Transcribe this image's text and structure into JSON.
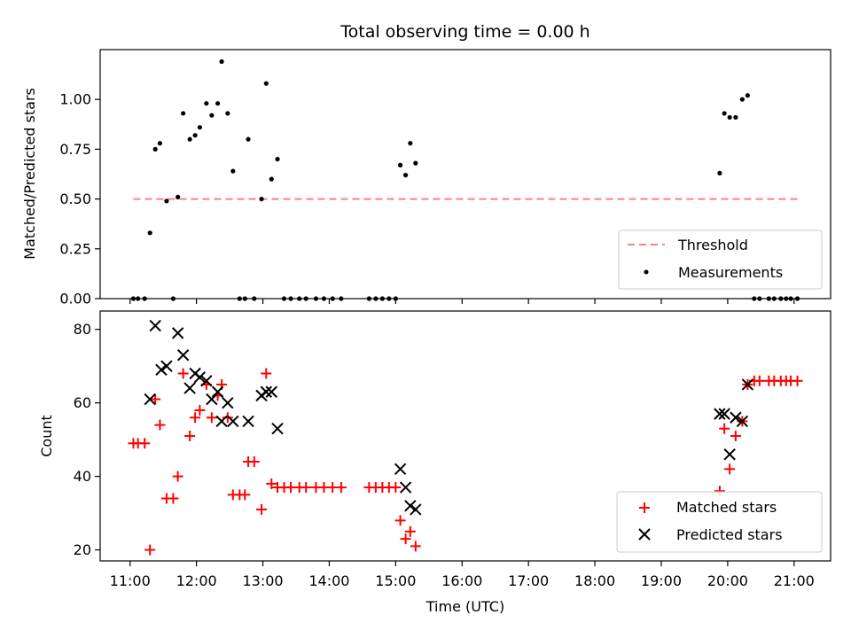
{
  "chart_data": {
    "title": "Total observing time = 0.00 h",
    "x_axis": {
      "label": "Time (UTC)",
      "ticks": [
        "11:00",
        "12:00",
        "13:00",
        "14:00",
        "15:00",
        "16:00",
        "17:00",
        "18:00",
        "19:00",
        "20:00",
        "21:00"
      ],
      "range_hours": [
        10.55,
        21.55
      ]
    },
    "panels": [
      {
        "type": "scatter",
        "ylabel": "Matched/Predicted stars",
        "ylim": [
          0,
          1.25
        ],
        "yticks": [
          "0.00",
          "0.25",
          "0.50",
          "0.75",
          "1.00"
        ],
        "threshold": {
          "name": "Threshold",
          "value": 0.5,
          "x_range": [
            11.05,
            21.05
          ],
          "color": "#ff7f7f"
        },
        "legend": [
          "Threshold",
          "Measurements"
        ],
        "series": [
          {
            "name": "Measurements",
            "color": "#000000",
            "marker": "dot",
            "points": [
              [
                11.05,
                0
              ],
              [
                11.12,
                0
              ],
              [
                11.22,
                0
              ],
              [
                11.3,
                0.33
              ],
              [
                11.38,
                0.75
              ],
              [
                11.45,
                0.78
              ],
              [
                11.55,
                0.49
              ],
              [
                11.65,
                0
              ],
              [
                11.72,
                0.51
              ],
              [
                11.8,
                0.93
              ],
              [
                11.9,
                0.8
              ],
              [
                11.98,
                0.82
              ],
              [
                12.05,
                0.86
              ],
              [
                12.15,
                0.98
              ],
              [
                12.23,
                0.92
              ],
              [
                12.32,
                0.98
              ],
              [
                12.38,
                1.19
              ],
              [
                12.47,
                0.93
              ],
              [
                12.55,
                0.64
              ],
              [
                12.65,
                0
              ],
              [
                12.73,
                0
              ],
              [
                12.78,
                0.8
              ],
              [
                12.87,
                0
              ],
              [
                12.98,
                0.5
              ],
              [
                13.05,
                1.08
              ],
              [
                13.13,
                0.6
              ],
              [
                13.22,
                0.7
              ],
              [
                13.32,
                0
              ],
              [
                13.42,
                0
              ],
              [
                13.55,
                0
              ],
              [
                13.65,
                0
              ],
              [
                13.8,
                0
              ],
              [
                13.92,
                0
              ],
              [
                14.05,
                0
              ],
              [
                14.18,
                0
              ],
              [
                14.6,
                0
              ],
              [
                14.7,
                0
              ],
              [
                14.8,
                0
              ],
              [
                14.9,
                0
              ],
              [
                15.0,
                0
              ],
              [
                15.07,
                0.67
              ],
              [
                15.15,
                0.62
              ],
              [
                15.22,
                0.78
              ],
              [
                15.3,
                0.68
              ],
              [
                19.88,
                0.63
              ],
              [
                19.95,
                0.93
              ],
              [
                20.03,
                0.91
              ],
              [
                20.12,
                0.91
              ],
              [
                20.22,
                1.0
              ],
              [
                20.3,
                1.02
              ],
              [
                20.4,
                0
              ],
              [
                20.48,
                0
              ],
              [
                20.62,
                0
              ],
              [
                20.7,
                0
              ],
              [
                20.8,
                0
              ],
              [
                20.88,
                0
              ],
              [
                20.95,
                0
              ],
              [
                21.05,
                0
              ]
            ]
          }
        ]
      },
      {
        "type": "scatter",
        "ylabel": "Count",
        "ylim": [
          17,
          85
        ],
        "yticks": [
          "20",
          "40",
          "60",
          "80"
        ],
        "legend": [
          "Matched stars",
          "Predicted stars"
        ],
        "series": [
          {
            "name": "Matched stars",
            "color": "#ff0000",
            "marker": "+",
            "points": [
              [
                11.05,
                49
              ],
              [
                11.12,
                49
              ],
              [
                11.22,
                49
              ],
              [
                11.3,
                20
              ],
              [
                11.38,
                61
              ],
              [
                11.45,
                54
              ],
              [
                11.55,
                34
              ],
              [
                11.65,
                34
              ],
              [
                11.72,
                40
              ],
              [
                11.8,
                68
              ],
              [
                11.9,
                51
              ],
              [
                11.98,
                56
              ],
              [
                12.05,
                58
              ],
              [
                12.15,
                65
              ],
              [
                12.23,
                56
              ],
              [
                12.32,
                62
              ],
              [
                12.38,
                65
              ],
              [
                12.47,
                56
              ],
              [
                12.55,
                35
              ],
              [
                12.65,
                35
              ],
              [
                12.73,
                35
              ],
              [
                12.78,
                44
              ],
              [
                12.87,
                44
              ],
              [
                12.98,
                31
              ],
              [
                13.05,
                68
              ],
              [
                13.13,
                38
              ],
              [
                13.22,
                37
              ],
              [
                13.32,
                37
              ],
              [
                13.42,
                37
              ],
              [
                13.55,
                37
              ],
              [
                13.65,
                37
              ],
              [
                13.8,
                37
              ],
              [
                13.92,
                37
              ],
              [
                14.05,
                37
              ],
              [
                14.18,
                37
              ],
              [
                14.6,
                37
              ],
              [
                14.7,
                37
              ],
              [
                14.8,
                37
              ],
              [
                14.9,
                37
              ],
              [
                15.0,
                37
              ],
              [
                15.07,
                28
              ],
              [
                15.15,
                23
              ],
              [
                15.22,
                25
              ],
              [
                15.3,
                21
              ],
              [
                19.88,
                36
              ],
              [
                19.95,
                53
              ],
              [
                20.03,
                42
              ],
              [
                20.12,
                51
              ],
              [
                20.22,
                55
              ],
              [
                20.3,
                65
              ],
              [
                20.4,
                66
              ],
              [
                20.48,
                66
              ],
              [
                20.62,
                66
              ],
              [
                20.7,
                66
              ],
              [
                20.8,
                66
              ],
              [
                20.88,
                66
              ],
              [
                20.95,
                66
              ],
              [
                21.05,
                66
              ]
            ]
          },
          {
            "name": "Predicted stars",
            "color": "#000000",
            "marker": "x",
            "points": [
              [
                11.3,
                61
              ],
              [
                11.38,
                81
              ],
              [
                11.47,
                69
              ],
              [
                11.55,
                70
              ],
              [
                11.72,
                79
              ],
              [
                11.8,
                73
              ],
              [
                11.9,
                64
              ],
              [
                11.98,
                68
              ],
              [
                12.05,
                67
              ],
              [
                12.15,
                66
              ],
              [
                12.23,
                61
              ],
              [
                12.32,
                63
              ],
              [
                12.38,
                55
              ],
              [
                12.47,
                60
              ],
              [
                12.55,
                55
              ],
              [
                12.78,
                55
              ],
              [
                12.98,
                62
              ],
              [
                13.05,
                63
              ],
              [
                13.13,
                63
              ],
              [
                13.22,
                53
              ],
              [
                15.07,
                42
              ],
              [
                15.15,
                37
              ],
              [
                15.22,
                32
              ],
              [
                15.3,
                31
              ],
              [
                19.88,
                57
              ],
              [
                19.95,
                57
              ],
              [
                20.03,
                46
              ],
              [
                20.12,
                56
              ],
              [
                20.22,
                55
              ],
              [
                20.3,
                65
              ]
            ]
          }
        ]
      }
    ]
  }
}
